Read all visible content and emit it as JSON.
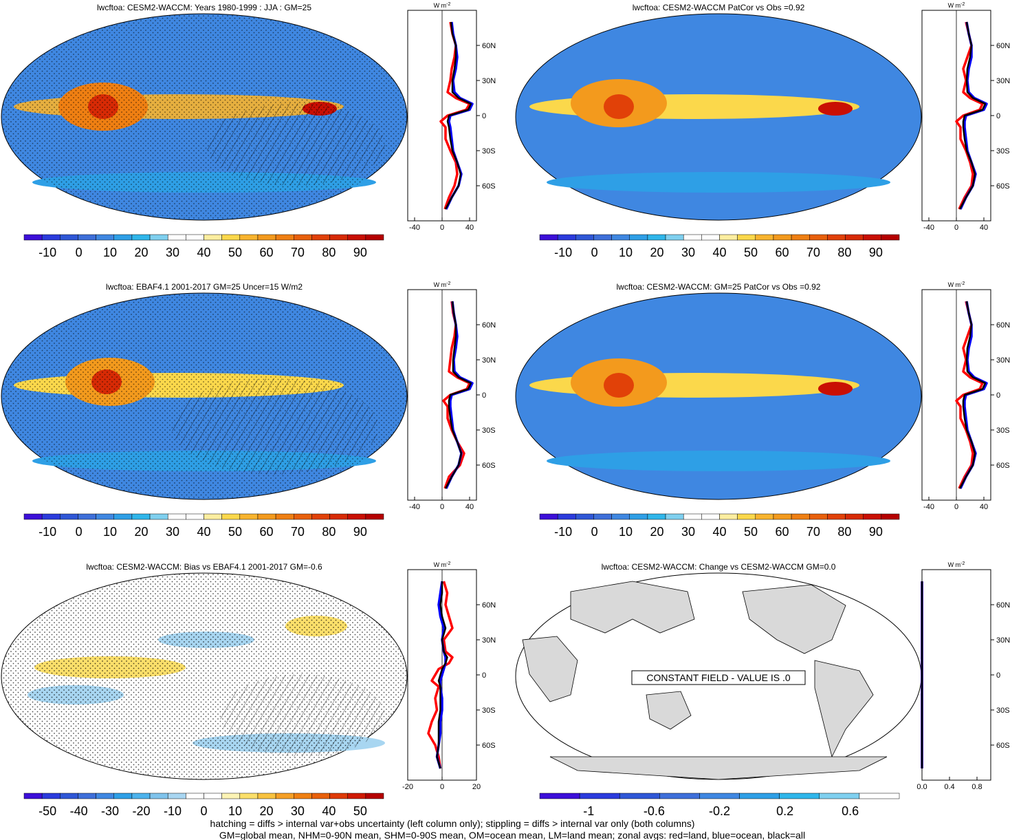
{
  "colors": {
    "map_scale": [
      "#3c0fd8",
      "#2b3bdc",
      "#2f57d6",
      "#3e6fd9",
      "#3f87e1",
      "#2e9fe6",
      "#2fb6ea",
      "#7fd0ef",
      "#ffffff",
      "#ffffff",
      "#fdeea0",
      "#fbd84b",
      "#f8b42e",
      "#f39a1d",
      "#ef7f12",
      "#e8600b",
      "#e14108",
      "#d72a05",
      "#c90f03",
      "#b50000"
    ],
    "diff_scale": [
      "#3c0fd8",
      "#2b3bdc",
      "#2f57d6",
      "#3e6fd9",
      "#3f87e1",
      "#2e9fe6",
      "#4cb2ec",
      "#7fc3ec",
      "#a8d6f1",
      "#ffffff",
      "#ffffff",
      "#fcf3b5",
      "#fbdf6a",
      "#f8c23f",
      "#f59f26",
      "#ef7f12",
      "#e8600b",
      "#de3a07",
      "#cf1a03",
      "#b50000"
    ],
    "change_scale": [
      "#3c0fd8",
      "#2b3bdc",
      "#2f57d6",
      "#3e6fd9",
      "#3f87e1",
      "#2e9fe6",
      "#2fb6ea",
      "#7fd0ef",
      "#ffffff"
    ],
    "land": "red",
    "ocean": "blue",
    "all": "black"
  },
  "panels": [
    {
      "title": "lwcftoa: CESM2-WACCM: Years 1980-1999 : JJA : GM=25",
      "colorbar_labels": [
        "-10",
        "0",
        "10",
        "20",
        "30",
        "40",
        "50",
        "60",
        "70",
        "80",
        "90"
      ],
      "zonal_ticks": [
        "-40",
        "0",
        "40"
      ],
      "hatching": true
    },
    {
      "title": "lwcftoa: CESM2-WACCM PatCor vs Obs =0.92",
      "colorbar_labels": [
        "-10",
        "0",
        "10",
        "20",
        "30",
        "40",
        "50",
        "60",
        "70",
        "80",
        "90"
      ],
      "zonal_ticks": [
        "-40",
        "0",
        "40"
      ],
      "hatching": false
    },
    {
      "title": "lwcftoa: EBAF4.1 2001-2017 GM=25 Uncer=15 W/m2",
      "colorbar_labels": [
        "-10",
        "0",
        "10",
        "20",
        "30",
        "40",
        "50",
        "60",
        "70",
        "80",
        "90"
      ],
      "zonal_ticks": [
        "-40",
        "0",
        "40"
      ],
      "hatching": true
    },
    {
      "title": "lwcftoa: CESM2-WACCM: GM=25 PatCor vs Obs =0.92",
      "colorbar_labels": [
        "-10",
        "0",
        "10",
        "20",
        "30",
        "40",
        "50",
        "60",
        "70",
        "80",
        "90"
      ],
      "zonal_ticks": [
        "-40",
        "0",
        "40"
      ],
      "hatching": false
    },
    {
      "title": "lwcftoa: CESM2-WACCM: Bias vs EBAF4.1 2001-2017 GM=-0.6",
      "colorbar_labels": [
        "-50",
        "-40",
        "-30",
        "-20",
        "-10",
        "0",
        "10",
        "20",
        "30",
        "40",
        "50"
      ],
      "zonal_ticks": [
        "-20",
        "0",
        "20"
      ],
      "hatching": true
    },
    {
      "title": "lwcftoa: CESM2-WACCM: Change vs CESM2-WACCM GM=0.0",
      "colorbar_labels": [
        "-1",
        "-0.6",
        "-0.2",
        "0.2",
        "0.6"
      ],
      "zonal_ticks": [
        "0.0",
        "0.4",
        "0.8"
      ],
      "constant_field_text": "CONSTANT FIELD - VALUE IS .0"
    }
  ],
  "lat_labels": [
    "60N",
    "30N",
    "0",
    "30S",
    "60S"
  ],
  "zonal_unit": "W m",
  "zonal_unit_exp": "-2",
  "footer": {
    "line1": "hatching = diffs > internal var+obs uncertainty (left column only); stippling = diffs > internal var only (both columns)",
    "line2": "GM=global mean, NHM=0-90N mean, SHM=0-90S mean, OM=ocean mean, LM=land mean; zonal avgs: red=land, blue=ocean, black=all"
  },
  "chart_data": [
    {
      "type": "heatmap",
      "title": "lwcftoa: CESM2-WACCM: Years 1980-1999 : JJA : GM=25",
      "colorbar": [
        -15,
        -10,
        -5,
        0,
        5,
        10,
        15,
        20,
        25,
        30,
        35,
        40,
        45,
        50,
        55,
        60,
        65,
        70,
        75,
        80,
        85,
        90,
        95
      ],
      "zonal_mean": {
        "lat": [
          80,
          70,
          60,
          50,
          40,
          30,
          20,
          15,
          10,
          5,
          0,
          -5,
          -10,
          -20,
          -30,
          -40,
          -50,
          -60,
          -70,
          -80
        ],
        "land": [
          12,
          15,
          20,
          18,
          14,
          12,
          8,
          20,
          40,
          35,
          8,
          -2,
          5,
          5,
          12,
          20,
          22,
          18,
          10,
          4
        ],
        "ocean": [
          14,
          16,
          20,
          22,
          20,
          16,
          18,
          26,
          44,
          40,
          12,
          10,
          12,
          14,
          16,
          22,
          28,
          24,
          14,
          6
        ],
        "all": [
          13,
          15,
          20,
          20,
          18,
          15,
          15,
          24,
          42,
          38,
          10,
          8,
          10,
          12,
          15,
          22,
          27,
          24,
          14,
          5
        ],
        "xlim": [
          -50,
          50
        ],
        "ylim": [
          -90,
          90
        ]
      }
    },
    {
      "type": "heatmap",
      "title": "lwcftoa: CESM2-WACCM PatCor vs Obs =0.92",
      "colorbar": [
        -15,
        -10,
        -5,
        0,
        5,
        10,
        15,
        20,
        25,
        30,
        35,
        40,
        45,
        50,
        55,
        60,
        65,
        70,
        75,
        80,
        85,
        90,
        95
      ],
      "zonal_mean": {
        "lat": [
          80,
          70,
          60,
          50,
          40,
          30,
          20,
          15,
          10,
          5,
          0,
          -5,
          -10,
          -20,
          -30,
          -40,
          -50,
          -60,
          -70,
          -80
        ],
        "land": [
          14,
          18,
          22,
          16,
          10,
          14,
          10,
          20,
          38,
          34,
          10,
          0,
          6,
          6,
          14,
          20,
          24,
          22,
          12,
          4
        ],
        "ocean": [
          15,
          18,
          22,
          22,
          18,
          16,
          18,
          26,
          44,
          40,
          14,
          12,
          12,
          14,
          16,
          22,
          28,
          24,
          14,
          6
        ],
        "all": [
          15,
          18,
          22,
          20,
          16,
          15,
          16,
          24,
          42,
          38,
          12,
          10,
          10,
          12,
          15,
          22,
          27,
          24,
          14,
          5
        ],
        "xlim": [
          -50,
          50
        ],
        "ylim": [
          -90,
          90
        ]
      }
    },
    {
      "type": "heatmap",
      "title": "lwcftoa: EBAF4.1 2001-2017 GM=25 Uncer=15 W/m2",
      "colorbar": [
        -15,
        -10,
        -5,
        0,
        5,
        10,
        15,
        20,
        25,
        30,
        35,
        40,
        45,
        50,
        55,
        60,
        65,
        70,
        75,
        80,
        85,
        90,
        95
      ],
      "zonal_mean": {
        "lat": [
          80,
          70,
          60,
          50,
          40,
          30,
          20,
          15,
          10,
          5,
          0,
          -5,
          -10,
          -20,
          -30,
          -40,
          -50,
          -60,
          -70,
          -80
        ],
        "land": [
          14,
          16,
          20,
          18,
          14,
          12,
          10,
          22,
          40,
          36,
          12,
          2,
          8,
          8,
          14,
          22,
          32,
          26,
          10,
          4
        ],
        "ocean": [
          15,
          17,
          20,
          22,
          20,
          17,
          18,
          26,
          44,
          40,
          14,
          12,
          12,
          14,
          16,
          22,
          28,
          24,
          14,
          6
        ],
        "all": [
          15,
          17,
          20,
          20,
          18,
          16,
          16,
          24,
          42,
          38,
          12,
          10,
          10,
          12,
          15,
          22,
          28,
          24,
          14,
          5
        ],
        "xlim": [
          -50,
          50
        ],
        "ylim": [
          -90,
          90
        ]
      }
    },
    {
      "type": "heatmap",
      "title": "lwcftoa: CESM2-WACCM: GM=25 PatCor vs Obs =0.92",
      "colorbar": [
        -15,
        -10,
        -5,
        0,
        5,
        10,
        15,
        20,
        25,
        30,
        35,
        40,
        45,
        50,
        55,
        60,
        65,
        70,
        75,
        80,
        85,
        90,
        95
      ],
      "zonal_mean": {
        "lat": [
          80,
          70,
          60,
          50,
          40,
          30,
          20,
          15,
          10,
          5,
          0,
          -5,
          -10,
          -20,
          -30,
          -40,
          -50,
          -60,
          -70,
          -80
        ],
        "land": [
          14,
          18,
          22,
          16,
          10,
          14,
          10,
          20,
          38,
          34,
          10,
          0,
          6,
          6,
          14,
          20,
          24,
          22,
          12,
          4
        ],
        "ocean": [
          15,
          18,
          22,
          22,
          18,
          16,
          18,
          26,
          44,
          40,
          14,
          12,
          12,
          14,
          16,
          22,
          28,
          24,
          14,
          6
        ],
        "all": [
          15,
          18,
          22,
          20,
          16,
          15,
          16,
          24,
          42,
          38,
          12,
          10,
          10,
          12,
          15,
          22,
          27,
          24,
          14,
          5
        ],
        "xlim": [
          -50,
          50
        ],
        "ylim": [
          -90,
          90
        ]
      }
    },
    {
      "type": "heatmap",
      "title": "lwcftoa: CESM2-WACCM: Bias vs EBAF4.1 2001-2017 GM=-0.6",
      "colorbar": [
        -55,
        -50,
        -45,
        -40,
        -35,
        -30,
        -25,
        -20,
        -15,
        -10,
        -5,
        0,
        5,
        10,
        15,
        20,
        25,
        30,
        35,
        40,
        45,
        50,
        55
      ],
      "zonal_mean": {
        "lat": [
          80,
          70,
          60,
          50,
          40,
          30,
          20,
          15,
          10,
          5,
          0,
          -5,
          -10,
          -20,
          -30,
          -40,
          -50,
          -60,
          -70,
          -80
        ],
        "land": [
          1,
          3,
          2,
          4,
          6,
          1,
          2,
          6,
          4,
          -2,
          -4,
          -6,
          -2,
          -4,
          -3,
          -6,
          -8,
          -4,
          -2,
          -1
        ],
        "ocean": [
          0,
          -1,
          -2,
          -1,
          1,
          0,
          1,
          2,
          2,
          1,
          0,
          -1,
          -1,
          0,
          0,
          -1,
          -1,
          -2,
          -3,
          -1
        ],
        "all": [
          0,
          0,
          -1,
          0,
          2,
          0,
          1,
          3,
          2,
          0,
          -1,
          -2,
          -1,
          -1,
          -1,
          -2,
          -2,
          -2,
          -3,
          -1
        ],
        "xlim": [
          -20,
          20
        ],
        "ylim": [
          -90,
          90
        ]
      }
    },
    {
      "type": "heatmap",
      "title": "lwcftoa: CESM2-WACCM: Change vs CESM2-WACCM GM=0.0",
      "colorbar": [
        -1.2,
        -1,
        -0.8,
        -0.6,
        -0.4,
        -0.2,
        0,
        0.2,
        0.4,
        0.6,
        0.8
      ],
      "zonal_mean": {
        "lat": [
          80,
          -80
        ],
        "land": [
          0,
          0
        ],
        "ocean": [
          0,
          0
        ],
        "all": [
          0,
          0
        ],
        "xlim": [
          0,
          1
        ],
        "ylim": [
          -90,
          90
        ]
      }
    }
  ]
}
